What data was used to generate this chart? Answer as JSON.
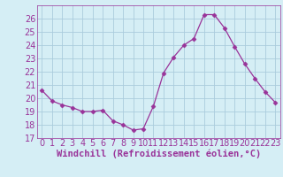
{
  "x": [
    0,
    1,
    2,
    3,
    4,
    5,
    6,
    7,
    8,
    9,
    10,
    11,
    12,
    13,
    14,
    15,
    16,
    17,
    18,
    19,
    20,
    21,
    22,
    23
  ],
  "y": [
    20.6,
    19.8,
    19.5,
    19.3,
    19.0,
    19.0,
    19.1,
    18.3,
    18.0,
    17.6,
    17.7,
    19.4,
    21.9,
    23.1,
    24.0,
    24.5,
    26.3,
    26.3,
    25.3,
    23.9,
    22.6,
    21.5,
    20.5,
    19.7
  ],
  "line_color": "#993399",
  "marker": "D",
  "marker_size": 2.5,
  "bg_color": "#d5eef5",
  "grid_color": "#aaccdd",
  "xlabel": "Windchill (Refroidissement éolien,°C)",
  "xlabel_color": "#993399",
  "tick_color": "#993399",
  "xlim": [
    -0.5,
    23.5
  ],
  "ylim": [
    17,
    27
  ],
  "yticks": [
    17,
    18,
    19,
    20,
    21,
    22,
    23,
    24,
    25,
    26
  ],
  "xticks": [
    0,
    1,
    2,
    3,
    4,
    5,
    6,
    7,
    8,
    9,
    10,
    11,
    12,
    13,
    14,
    15,
    16,
    17,
    18,
    19,
    20,
    21,
    22,
    23
  ],
  "tick_fontsize": 7,
  "label_fontsize": 7.5
}
